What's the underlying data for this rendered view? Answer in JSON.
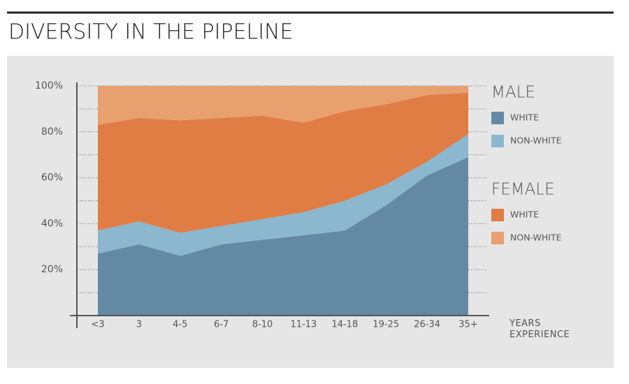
{
  "chart_data": {
    "type": "stacked_area",
    "title": "DIVERSITY IN THE PIPELINE",
    "x_label": "YEARS EXPERIENCE",
    "categories": [
      "<3",
      "3",
      "4-5",
      "6-7",
      "8-10",
      "11-13",
      "14-18",
      "19-25",
      "26-34",
      "35+"
    ],
    "series": [
      {
        "name": "WHITE",
        "group": "MALE",
        "color": "#648aa3",
        "values": [
          27,
          31,
          26,
          31,
          33,
          35,
          37,
          48,
          61,
          69
        ]
      },
      {
        "name": "NON-WHITE",
        "group": "MALE",
        "color": "#8cb8cf",
        "values": [
          10,
          10,
          10,
          8,
          9,
          10,
          13,
          9,
          6,
          10
        ]
      },
      {
        "name": "WHITE",
        "group": "FEMALE",
        "color": "#e07d45",
        "values": [
          46,
          45,
          49,
          47,
          45,
          39,
          39,
          35,
          29,
          18
        ]
      },
      {
        "name": "NON-WHITE",
        "group": "FEMALE",
        "color": "#e8a06e",
        "values": [
          17,
          14,
          15,
          14,
          13,
          16,
          11,
          8,
          4,
          3
        ]
      }
    ],
    "ylim": [
      0,
      100
    ],
    "yticks": [
      {
        "value": 20,
        "label": "20%"
      },
      {
        "value": 40,
        "label": "40%"
      },
      {
        "value": 60,
        "label": "60%"
      },
      {
        "value": 80,
        "label": "80%"
      },
      {
        "value": 100,
        "label": "100%"
      }
    ],
    "minor_yticks": [
      10,
      30,
      50,
      70,
      90
    ],
    "grid": true
  }
}
